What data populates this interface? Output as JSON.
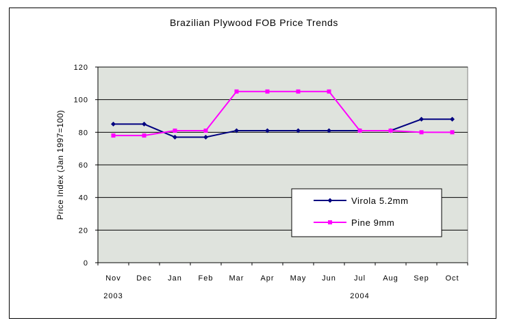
{
  "chart_data": {
    "type": "line",
    "title": "Brazilian Plywood FOB Price Trends",
    "xlabel": "",
    "ylabel": "Price Index (Jan 1997=100)",
    "categories": [
      "Nov",
      "Dec",
      "Jan",
      "Feb",
      "Mar",
      "Apr",
      "May",
      "Jun",
      "Jul",
      "Aug",
      "Sep",
      "Oct"
    ],
    "year_labels": [
      {
        "label": "2003",
        "category_index": 0
      },
      {
        "label": "2004",
        "category_index": 8
      }
    ],
    "yticks": [
      "0",
      "20",
      "40",
      "60",
      "80",
      "100",
      "120"
    ],
    "ylim": [
      0,
      120
    ],
    "grid": true,
    "legend_position": "bottom-right",
    "series": [
      {
        "name": "Virola 5.2mm",
        "color": "#000080",
        "marker": "diamond",
        "values": [
          85,
          85,
          77,
          77,
          81,
          81,
          81,
          81,
          81,
          81,
          88,
          88
        ]
      },
      {
        "name": "Pine 9mm",
        "color": "#ff00ff",
        "marker": "square",
        "values": [
          78,
          78,
          81,
          81,
          105,
          105,
          105,
          105,
          81,
          81,
          80,
          80
        ]
      }
    ],
    "plot_background": "#dfe3dd"
  }
}
